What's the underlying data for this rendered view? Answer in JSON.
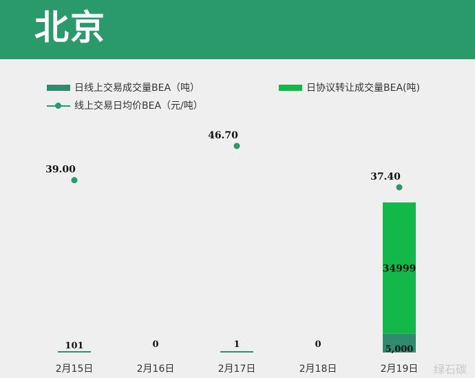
{
  "header": {
    "title": "北京"
  },
  "colors": {
    "header_bg": "#2a9a6a",
    "online_volume": "#2e8b6e",
    "agreement_volume": "#14b84a",
    "avg_price": "#2a9a6a"
  },
  "watermark": "绿石碳",
  "chart_data": {
    "type": "bar",
    "categories": [
      "2月15日",
      "2月16日",
      "2月17日",
      "2月18日",
      "2月19日"
    ],
    "series": [
      {
        "name": "日线上交易成交量BEA（吨）",
        "kind": "bar",
        "values": [
          101,
          0,
          1,
          0,
          5000
        ],
        "labels": [
          "101",
          "0",
          "1",
          "0",
          "5,000"
        ]
      },
      {
        "name": "日协议转让成交量BEA(吨)",
        "kind": "bar",
        "values": [
          0,
          0,
          0,
          0,
          34999
        ],
        "labels": [
          "",
          "",
          "",
          "",
          "34999"
        ]
      },
      {
        "name": "线上交易日均价BEA（元/吨）",
        "kind": "line-markers",
        "values": [
          39.0,
          null,
          46.7,
          null,
          37.4
        ],
        "labels": [
          "39.00",
          "",
          "46.70",
          "",
          "37.40"
        ]
      }
    ],
    "stacked": true,
    "legend": "top"
  }
}
